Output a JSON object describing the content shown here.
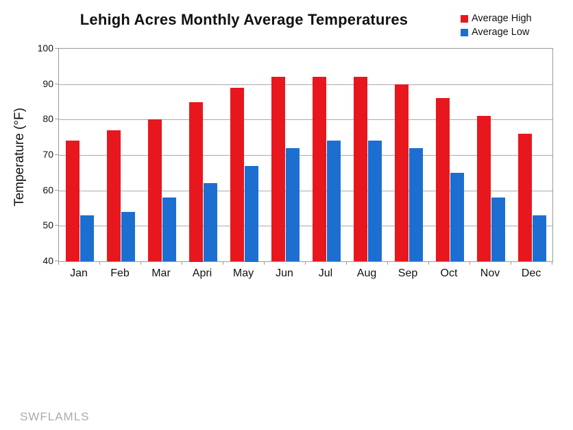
{
  "chart_data": {
    "type": "bar",
    "title": "Lehigh Acres Monthly Average Temperatures",
    "xlabel": "",
    "ylabel": "Temperature (°F)",
    "categories": [
      "Jan",
      "Feb",
      "Mar",
      "Apri",
      "May",
      "Jun",
      "Jul",
      "Aug",
      "Sep",
      "Oct",
      "Nov",
      "Dec"
    ],
    "series": [
      {
        "name": "Average High",
        "color": "#e8171d",
        "values": [
          74,
          77,
          80,
          85,
          89,
          92,
          92,
          92,
          90,
          86,
          81,
          76
        ]
      },
      {
        "name": "Average Low",
        "color": "#1c6fd1",
        "values": [
          53,
          54,
          58,
          62,
          67,
          72,
          74,
          74,
          72,
          65,
          58,
          53
        ]
      }
    ],
    "ylim": [
      40,
      100
    ],
    "ytick_step": 10,
    "yticks": [
      40,
      50,
      60,
      70,
      80,
      90,
      100
    ],
    "grid": "horizontal",
    "legend_position": "top-right",
    "gridline_color": "#a9a9a9",
    "axis_color": "#9a9a9a",
    "text_color": "#111111"
  },
  "watermark": "SWFLAMLS"
}
